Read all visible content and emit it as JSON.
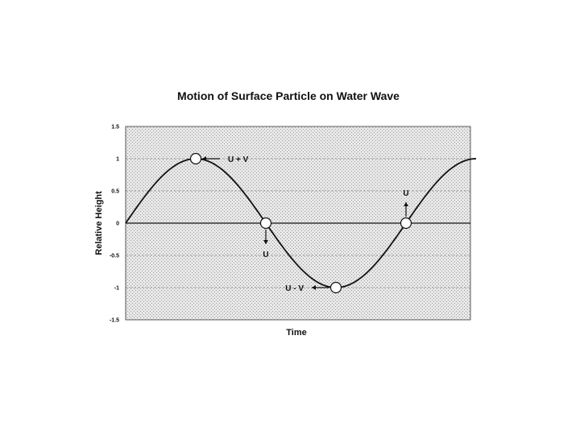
{
  "chart_data": {
    "type": "line",
    "title": "Motion of Surface Particle on Water Wave",
    "xlabel": "Time",
    "ylabel": "Relative Height",
    "ylim": [
      -1.5,
      1.5
    ],
    "yticks": [
      "1.5",
      "1",
      "0.5",
      "0",
      "-0.5",
      "-1",
      "-1.5"
    ],
    "grid": true,
    "series": [
      {
        "name": "",
        "curve": "sine",
        "amplitude": 1,
        "cycles": 1.25,
        "color": "#111111"
      }
    ],
    "markers": [
      {
        "label": "U + V",
        "x_cycles": 0.25,
        "y": 1,
        "arrow": "right"
      },
      {
        "label": "U",
        "x_cycles": 0.5,
        "y": 0,
        "arrow": "down"
      },
      {
        "label": "U - V",
        "x_cycles": 0.75,
        "y": -1,
        "arrow": "left"
      },
      {
        "label": "U",
        "x_cycles": 1.0,
        "y": 0,
        "arrow": "up"
      }
    ]
  }
}
